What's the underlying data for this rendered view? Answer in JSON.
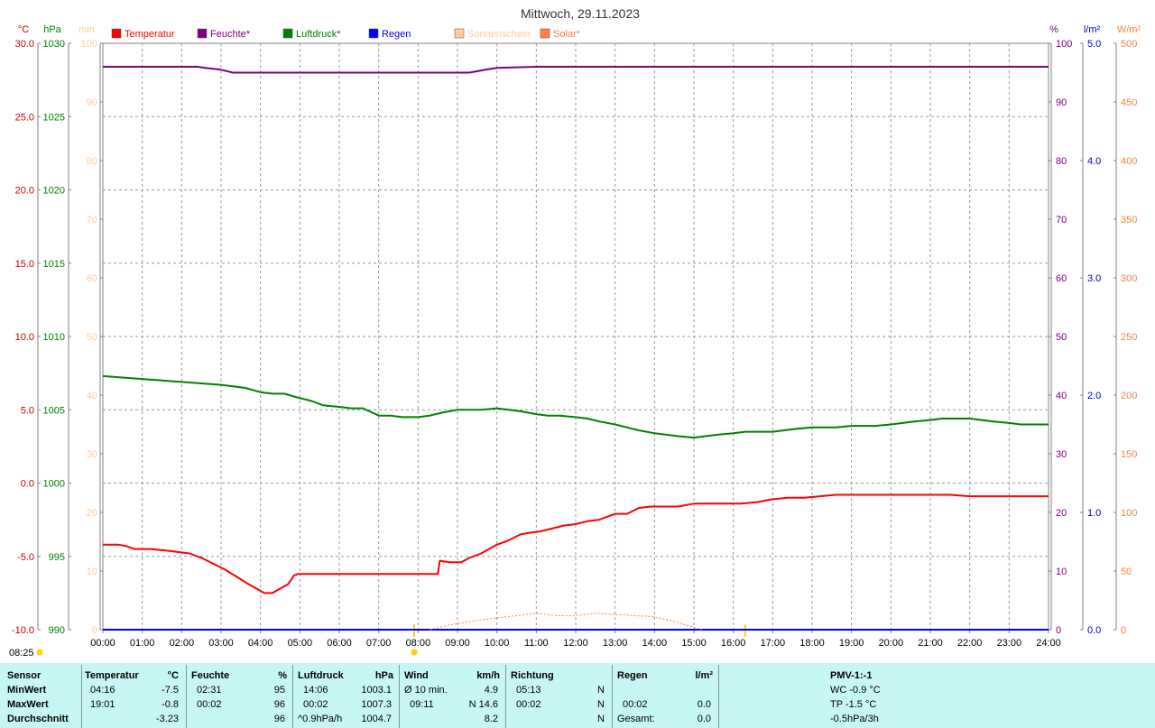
{
  "chart_data": {
    "type": "line",
    "title": "Mittwoch, 29.11.2023",
    "x_ticks": [
      "00:00",
      "01:00",
      "02:00",
      "03:00",
      "04:00",
      "05:00",
      "06:00",
      "07:00",
      "08:00",
      "09:00",
      "10:00",
      "11:00",
      "12:00",
      "13:00",
      "14:00",
      "15:00",
      "16:00",
      "17:00",
      "18:00",
      "19:00",
      "20:00",
      "21:00",
      "22:00",
      "23:00",
      "24:00"
    ],
    "xlim": [
      0,
      24
    ],
    "grid": true,
    "legend": {
      "placement": "top",
      "items": [
        {
          "label": "Temperatur",
          "color": "#ff0000"
        },
        {
          "label": "Feuchte*",
          "color": "#800080"
        },
        {
          "label": "Luftdruck*",
          "color": "#008000"
        },
        {
          "label": "Regen",
          "color": "#0000ff"
        },
        {
          "label": "Sonnenschein",
          "color": "#ffcc99"
        },
        {
          "label": "Solar*",
          "color": "#ff8040"
        }
      ]
    },
    "axes": {
      "temp": {
        "unit": "°C",
        "color": "#cc0000",
        "ylim": [
          -10,
          30
        ],
        "ticks": [
          "30.0",
          "25.0",
          "20.0",
          "15.0",
          "10.0",
          "5.0",
          "0.0",
          "-5.0",
          "-10.0"
        ]
      },
      "pressure": {
        "unit": "hPa",
        "color": "#008000",
        "ylim": [
          990,
          1030
        ],
        "ticks": [
          "1030",
          "1025",
          "1020",
          "1015",
          "1010",
          "1005",
          "1000",
          "995",
          "990"
        ]
      },
      "sun": {
        "unit": "min",
        "color": "#ffcc99",
        "ylim": [
          0,
          100
        ],
        "ticks": [
          "100",
          "90",
          "80",
          "70",
          "60",
          "50",
          "40",
          "30",
          "20",
          "10",
          "0"
        ]
      },
      "humidity": {
        "unit": "%",
        "color": "#800080",
        "ylim": [
          0,
          100
        ],
        "ticks": [
          "100",
          "90",
          "80",
          "70",
          "60",
          "50",
          "40",
          "30",
          "20",
          "10",
          "0"
        ]
      },
      "rain": {
        "unit": "l/m²",
        "color": "#0000cc",
        "ylim": [
          0,
          5
        ],
        "ticks": [
          "5.0",
          "4.0",
          "3.0",
          "2.0",
          "1.0",
          "0.0"
        ]
      },
      "solar": {
        "unit": "W/m²",
        "color": "#ff8040",
        "ylim": [
          0,
          500
        ],
        "ticks": [
          "500",
          "450",
          "400",
          "350",
          "300",
          "250",
          "200",
          "150",
          "100",
          "50",
          "0"
        ]
      }
    },
    "series": [
      {
        "name": "Temperatur",
        "axis": "temp",
        "color": "#ff0000",
        "x": [
          0,
          0.4,
          0.6,
          0.8,
          1.2,
          1.6,
          1.9,
          2.2,
          2.5,
          2.8,
          3.1,
          3.4,
          3.7,
          3.9,
          4.1,
          4.3,
          4.5,
          4.7,
          4.85,
          4.95,
          5.5,
          6,
          7,
          8,
          8.5,
          8.55,
          8.8,
          9.1,
          9.3,
          9.6,
          9.8,
          10,
          10.3,
          10.6,
          10.8,
          11.1,
          11.4,
          11.7,
          12,
          12.3,
          12.6,
          13,
          13.3,
          13.6,
          13.9,
          14.2,
          14.6,
          15,
          15.4,
          15.8,
          16.2,
          16.6,
          17,
          17.4,
          17.8,
          18.2,
          18.6,
          19,
          19.4,
          19.8,
          20.2,
          20.6,
          21,
          21.5,
          22,
          22.5,
          23,
          23.5,
          24
        ],
        "values": [
          -4.2,
          -4.2,
          -4.3,
          -4.5,
          -4.5,
          -4.6,
          -4.7,
          -4.8,
          -5.1,
          -5.5,
          -5.9,
          -6.4,
          -6.9,
          -7.2,
          -7.5,
          -7.5,
          -7.2,
          -6.9,
          -6.3,
          -6.2,
          -6.2,
          -6.2,
          -6.2,
          -6.2,
          -6.2,
          -5.3,
          -5.4,
          -5.4,
          -5.1,
          -4.8,
          -4.5,
          -4.2,
          -3.9,
          -3.5,
          -3.4,
          -3.3,
          -3.1,
          -2.9,
          -2.8,
          -2.6,
          -2.5,
          -2.1,
          -2.1,
          -1.7,
          -1.6,
          -1.6,
          -1.6,
          -1.4,
          -1.4,
          -1.4,
          -1.4,
          -1.3,
          -1.1,
          -1.0,
          -1.0,
          -0.9,
          -0.8,
          -0.8,
          -0.8,
          -0.8,
          -0.8,
          -0.8,
          -0.8,
          -0.8,
          -0.9,
          -0.9,
          -0.9,
          -0.9,
          -0.9
        ]
      },
      {
        "name": "Feuchte*",
        "axis": "humidity",
        "color": "#800080",
        "x": [
          0,
          2.4,
          2.6,
          3,
          3.3,
          4,
          5,
          6,
          7,
          8,
          9,
          9.3,
          9.8,
          10,
          11,
          12,
          14,
          16,
          18,
          20,
          22,
          24
        ],
        "values": [
          96,
          96,
          95.8,
          95.5,
          95,
          95,
          95,
          95,
          95,
          95,
          95,
          95,
          95.6,
          95.8,
          96,
          96,
          96,
          96,
          96,
          96,
          96,
          96
        ]
      },
      {
        "name": "Luftdruck*",
        "axis": "pressure",
        "color": "#008000",
        "x": [
          0,
          0.5,
          1,
          1.5,
          2,
          2.5,
          3,
          3.3,
          3.6,
          4,
          4.3,
          4.6,
          5,
          5.3,
          5.6,
          6,
          6.3,
          6.6,
          7,
          7.3,
          7.6,
          8,
          8.3,
          8.6,
          9,
          9.3,
          9.6,
          10,
          10.3,
          10.6,
          11,
          11.3,
          11.6,
          12,
          12.3,
          12.6,
          13,
          13.3,
          13.6,
          14,
          14.3,
          14.6,
          15,
          15.3,
          15.6,
          16,
          16.3,
          16.6,
          17,
          17.3,
          17.6,
          18,
          18.3,
          18.6,
          19,
          19.3,
          19.6,
          20,
          20.3,
          20.6,
          21,
          21.3,
          21.6,
          22,
          22.3,
          22.6,
          23,
          23.3,
          23.6,
          24
        ],
        "values": [
          1007.3,
          1007.2,
          1007.1,
          1007,
          1006.9,
          1006.8,
          1006.7,
          1006.6,
          1006.5,
          1006.2,
          1006.1,
          1006.1,
          1005.8,
          1005.6,
          1005.3,
          1005.2,
          1005.1,
          1005.1,
          1004.6,
          1004.6,
          1004.5,
          1004.5,
          1004.6,
          1004.8,
          1005,
          1005,
          1005,
          1005.1,
          1005,
          1004.9,
          1004.7,
          1004.6,
          1004.6,
          1004.5,
          1004.4,
          1004.2,
          1004,
          1003.8,
          1003.6,
          1003.4,
          1003.3,
          1003.2,
          1003.1,
          1003.2,
          1003.3,
          1003.4,
          1003.5,
          1003.5,
          1003.5,
          1003.6,
          1003.7,
          1003.8,
          1003.8,
          1003.8,
          1003.9,
          1003.9,
          1003.9,
          1004,
          1004.1,
          1004.2,
          1004.3,
          1004.4,
          1004.4,
          1004.4,
          1004.3,
          1004.2,
          1004.1,
          1004,
          1004,
          1004
        ]
      },
      {
        "name": "Regen",
        "axis": "rain",
        "color": "#0000ff",
        "x": [
          0,
          24
        ],
        "values": [
          0,
          0
        ]
      },
      {
        "name": "Solar*",
        "axis": "solar",
        "color": "#ff8040",
        "style": "dotted",
        "x": [
          8.3,
          8.8,
          9.5,
          10,
          10.5,
          11,
          11.5,
          12,
          12.5,
          13,
          13.5,
          14,
          14.5,
          15,
          15.2
        ],
        "values": [
          0,
          4,
          8,
          10,
          12,
          14,
          12,
          12,
          14,
          13,
          12,
          11,
          7,
          2,
          0
        ]
      }
    ],
    "markers": [
      {
        "label": "08:25",
        "x": 7.9,
        "color": "#ffd200"
      }
    ],
    "sun_times": [
      7.9,
      16.3
    ]
  },
  "stats": {
    "header": {
      "sensor": "Sensor",
      "temp": "Temperatur",
      "temp_unit": "°C",
      "hum": "Feuchte",
      "hum_unit": "%",
      "press": "Luftdruck",
      "press_unit": "hPa",
      "wind": "Wind",
      "wind_unit": "km/h",
      "dir": "Richtung",
      "rain": "Regen",
      "rain_unit": "l/m²",
      "pmv": "PMV-1:-1"
    },
    "rows": [
      {
        "label": "MinWert",
        "temp_time": "04:16",
        "temp_val": "-7.5",
        "hum_time": "02:31",
        "hum_val": "95",
        "press_time": "14:06",
        "press_val": "1003.1",
        "wind_label": "Ø 10 min.",
        "wind_val": "4.9",
        "dir_time": "05:13",
        "dir_val": "N",
        "rain_time": "",
        "rain_val": "",
        "pmv": "WC -0.9 °C"
      },
      {
        "label": "MaxWert",
        "temp_time": "19:01",
        "temp_val": "-0.8",
        "hum_time": "00:02",
        "hum_val": "96",
        "press_time": "00:02",
        "press_val": "1007.3",
        "wind_label": "09:11",
        "wind_val": "N 14.6",
        "dir_time": "00:02",
        "dir_val": "N",
        "rain_time": "00:02",
        "rain_val": "0.0",
        "pmv": "TP -1.5 °C"
      },
      {
        "label": "Durchschnitt",
        "temp_time": "",
        "temp_val": "-3.23",
        "hum_time": "",
        "hum_val": "96",
        "press_time": "^0.9hPa/h",
        "press_val": "1004.7",
        "wind_label": "",
        "wind_val": "8.2",
        "dir_time": "",
        "dir_val": "N",
        "rain_time": "Gesamt:",
        "rain_val": "0.0",
        "pmv": "-0.5hPa/3h"
      }
    ]
  }
}
